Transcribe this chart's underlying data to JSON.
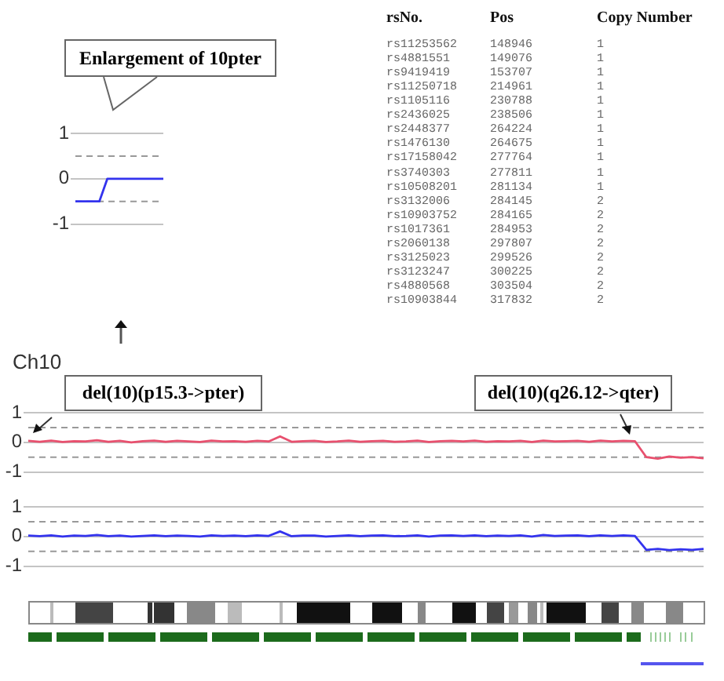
{
  "chart_data": [
    {
      "type": "line",
      "categories": [
        null,
        null,
        null,
        null,
        null,
        null,
        null,
        null,
        null,
        null,
        null,
        null
      ],
      "series": [
        {
          "color": "#3333ee",
          "values": [
            -0.5,
            -0.5,
            -0.5,
            -0.5,
            0,
            0,
            0,
            0,
            0,
            0,
            0,
            0
          ]
        }
      ],
      "ylim": [
        -1,
        1
      ],
      "yticks": [
        1,
        0,
        -1
      ],
      "ref_lines": [
        {
          "axis": "y",
          "value": 0.5,
          "line_style": "dashed"
        },
        {
          "axis": "y",
          "value": -0.5,
          "line_style": "dashed"
        }
      ],
      "grid": "y",
      "legend": false,
      "marker": "none",
      "annotations": [
        "Enlargement of 10pter"
      ]
    },
    {
      "type": "other",
      "annotations": [
        "rsNo.",
        "Pos",
        "Copy Number",
        "rs11253562",
        "148946",
        "1",
        "rs4881551",
        "149076",
        "1",
        "rs9419419",
        "153707",
        "1",
        "rs11250718",
        "214961",
        "1",
        "rs1105116",
        "230788",
        "1",
        "rs2436025",
        "238506",
        "1",
        "rs2448377",
        "264224",
        "1",
        "rs1476130",
        "264675",
        "1",
        "rs17158042",
        "277764",
        "1",
        "rs3740303",
        "277811",
        "1",
        "rs10508201",
        "281134",
        "1",
        "rs3132006",
        "284145",
        "2",
        "rs10903752",
        "284165",
        "2",
        "rs1017361",
        "284953",
        "2",
        "rs2060138",
        "297807",
        "2",
        "rs3125023",
        "299526",
        "2",
        "rs3123247",
        "300225",
        "2",
        "rs4880568",
        "303504",
        "2",
        "rs10903844",
        "317832",
        "2"
      ]
    },
    {
      "type": "line",
      "categories": [
        null,
        null,
        null,
        null,
        null,
        null,
        null,
        null,
        null,
        null,
        null,
        null,
        null,
        null,
        null,
        null,
        null,
        null,
        null,
        null,
        null,
        null,
        null,
        null,
        null,
        null,
        null,
        null,
        null,
        null,
        null,
        null,
        null,
        null,
        null,
        null,
        null,
        null,
        null,
        null,
        null,
        null,
        null,
        null,
        null,
        null,
        null,
        null,
        null,
        null,
        null,
        null,
        null,
        null,
        null,
        null,
        null,
        null,
        null,
        null
      ],
      "series": [
        {
          "color": "#e8506e",
          "values": [
            0.05,
            0.02,
            0.06,
            0.01,
            0.04,
            0.03,
            0.07,
            0.02,
            0.05,
            0.0,
            0.04,
            0.06,
            0.02,
            0.05,
            0.03,
            0.01,
            0.06,
            0.03,
            0.04,
            0.02,
            0.05,
            0.03,
            0.2,
            0.02,
            0.04,
            0.05,
            0.01,
            0.03,
            0.06,
            0.02,
            0.04,
            0.05,
            0.02,
            0.03,
            0.06,
            0.01,
            0.04,
            0.05,
            0.03,
            0.06,
            0.02,
            0.04,
            0.03,
            0.05,
            0.01,
            0.06,
            0.03,
            0.04,
            0.05,
            0.02,
            0.06,
            0.03,
            0.05,
            0.04,
            -0.5,
            -0.55,
            -0.48,
            -0.52,
            -0.5,
            -0.54
          ]
        }
      ],
      "ylim": [
        -1,
        1
      ],
      "yticks": [
        1,
        0,
        -1
      ],
      "ref_lines": [
        {
          "axis": "y",
          "value": 0.5,
          "line_style": "dashed"
        },
        {
          "axis": "y",
          "value": -0.5,
          "line_style": "dashed"
        }
      ],
      "grid": "y",
      "legend": false,
      "marker": "none",
      "annotations": [
        "Ch10",
        "del(10)(p15.3->pter)",
        "del(10)(q26.12->qter)"
      ]
    },
    {
      "type": "line",
      "categories": [
        null,
        null,
        null,
        null,
        null,
        null,
        null,
        null,
        null,
        null,
        null,
        null,
        null,
        null,
        null,
        null,
        null,
        null,
        null,
        null,
        null,
        null,
        null,
        null,
        null,
        null,
        null,
        null,
        null,
        null,
        null,
        null,
        null,
        null,
        null,
        null,
        null,
        null,
        null,
        null,
        null,
        null,
        null,
        null,
        null,
        null,
        null,
        null,
        null,
        null,
        null,
        null,
        null,
        null,
        null,
        null,
        null,
        null,
        null,
        null
      ],
      "series": [
        {
          "color": "#3333ee",
          "values": [
            0.03,
            0.01,
            0.04,
            0.0,
            0.03,
            0.02,
            0.05,
            0.01,
            0.03,
            0.0,
            0.02,
            0.04,
            0.01,
            0.03,
            0.02,
            0.0,
            0.04,
            0.02,
            0.03,
            0.01,
            0.04,
            0.02,
            0.17,
            0.01,
            0.03,
            0.03,
            0.0,
            0.02,
            0.04,
            0.01,
            0.03,
            0.04,
            0.01,
            0.02,
            0.04,
            0.0,
            0.03,
            0.04,
            0.02,
            0.04,
            0.01,
            0.03,
            0.02,
            0.04,
            0.0,
            0.05,
            0.02,
            0.03,
            0.04,
            0.01,
            0.04,
            0.02,
            0.04,
            0.02,
            -0.45,
            -0.42,
            -0.46,
            -0.43,
            -0.45,
            -0.42
          ]
        }
      ],
      "ylim": [
        -1,
        1
      ],
      "yticks": [
        1,
        0,
        -1
      ],
      "ref_lines": [
        {
          "axis": "y",
          "value": 0.5,
          "line_style": "dashed"
        },
        {
          "axis": "y",
          "value": -0.5,
          "line_style": "dashed"
        }
      ],
      "grid": "y",
      "legend": false,
      "marker": "none"
    }
  ]
}
